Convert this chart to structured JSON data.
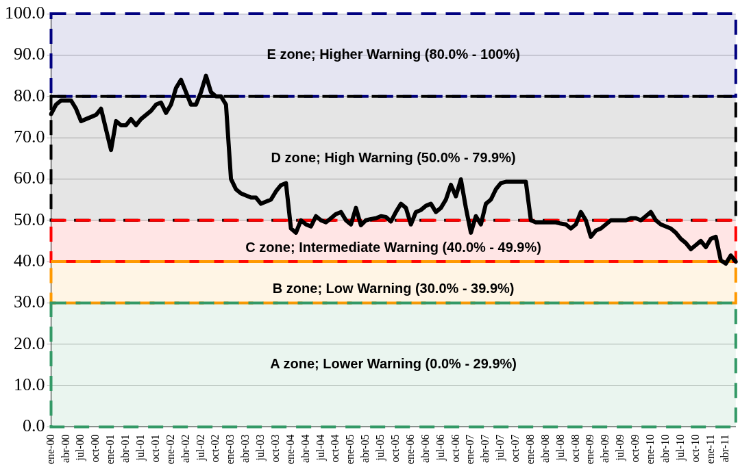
{
  "chart_data": {
    "type": "line",
    "categories": [
      "ene-00",
      null,
      null,
      "abr-00",
      null,
      null,
      "jul-00",
      null,
      null,
      "oct-00",
      null,
      null,
      "ene-01",
      null,
      null,
      "abr-01",
      null,
      null,
      "jul-01",
      null,
      null,
      "oct-01",
      null,
      null,
      "ene-02",
      null,
      null,
      "abr-02",
      null,
      null,
      "jul-02",
      null,
      null,
      "oct-02",
      null,
      null,
      "ene-03",
      null,
      null,
      "abr-03",
      null,
      null,
      "jul-03",
      null,
      null,
      "oct-03",
      null,
      null,
      "ene-04",
      null,
      null,
      "abr-04",
      null,
      null,
      "jul-04",
      null,
      null,
      "oct-04",
      null,
      null,
      "ene-05",
      null,
      null,
      "abr-05",
      null,
      null,
      "jul-05",
      null,
      null,
      "oct-05",
      null,
      null,
      "ene-06",
      null,
      null,
      "abr-06",
      null,
      null,
      "jul-06",
      null,
      null,
      "oct-06",
      null,
      null,
      "ene-07",
      null,
      null,
      "abr-07",
      null,
      null,
      "jul-07",
      null,
      null,
      "oct-07",
      null,
      null,
      "ene-08",
      null,
      null,
      "abr-08",
      null,
      null,
      "jul-08",
      null,
      null,
      "oct-08",
      null,
      null,
      "ene-09",
      null,
      null,
      "abr-09",
      null,
      null,
      "jul-09",
      null,
      null,
      "oct-09",
      null,
      null,
      "ene-10",
      null,
      null,
      "abr-10",
      null,
      null,
      "jul-10",
      null,
      null,
      "oct-10",
      null,
      null,
      "ene-11",
      null,
      null,
      "abr-11",
      null,
      null
    ],
    "series": [
      {
        "color": "#000000",
        "values": [
          75.7,
          78,
          79,
          79,
          79,
          77,
          74,
          74.5,
          75,
          75.5,
          77,
          72,
          67,
          74,
          73,
          73,
          74.5,
          73,
          74.5,
          75.5,
          76.5,
          78,
          78.5,
          76,
          78,
          82,
          84,
          81,
          78,
          78,
          81,
          85,
          81,
          80,
          80,
          78,
          60,
          57.5,
          56.5,
          56,
          55.5,
          55.5,
          54,
          54.5,
          55,
          57,
          58.5,
          59,
          48,
          47,
          50,
          49,
          48.5,
          51,
          50,
          49.5,
          50.5,
          51.5,
          52,
          50,
          49,
          53,
          48.8,
          50,
          50.3,
          50.5,
          51,
          50.8,
          49.7,
          52,
          54,
          53,
          49,
          52,
          52.5,
          53.5,
          54,
          52,
          53,
          55,
          58.6,
          55.8,
          59.9,
          53,
          47,
          51,
          49,
          54,
          55,
          57.5,
          59,
          59.3,
          59.3,
          59.3,
          59.3,
          59.3,
          50,
          49.5,
          49.5,
          49.5,
          49.5,
          49.5,
          49.2,
          49,
          48,
          49,
          52,
          50,
          46,
          47.5,
          48,
          49,
          50,
          50,
          50,
          50,
          50.5,
          50.5,
          50,
          51,
          52,
          50,
          49,
          48.5,
          48,
          47,
          45.5,
          44.5,
          43,
          44,
          45,
          43.5,
          45.5,
          46,
          40.3,
          39.5,
          41.5,
          40
        ]
      }
    ],
    "ylim": [
      0,
      100
    ],
    "yticks": [
      {
        "value": 0,
        "label": "0.0"
      },
      {
        "value": 10,
        "label": "10.0"
      },
      {
        "value": 20,
        "label": "20.0"
      },
      {
        "value": 30,
        "label": "30.0"
      },
      {
        "value": 40,
        "label": "40.0"
      },
      {
        "value": 50,
        "label": "50.0"
      },
      {
        "value": 60,
        "label": "60.0"
      },
      {
        "value": 70,
        "label": "70.0"
      },
      {
        "value": 80,
        "label": "80.0"
      },
      {
        "value": 90,
        "label": "90.0"
      },
      {
        "value": 100,
        "label": "100.0"
      }
    ],
    "grid": "y",
    "legend": false,
    "marker": "none",
    "line_style": "solid",
    "bands": [
      {
        "axis": "y",
        "from": 80,
        "to": 100,
        "label": "E zone; Higher Warning (80.0% - 100%)",
        "color": "#000080"
      },
      {
        "axis": "y",
        "from": 50,
        "to": 80,
        "label": "D zone; High Warning (50.0% - 79.9%)",
        "color": "#000000"
      },
      {
        "axis": "y",
        "from": 40,
        "to": 50,
        "label": "C zone; Intermediate Warning (40.0% - 49.9%)",
        "color": "#ff0000"
      },
      {
        "axis": "y",
        "from": 30,
        "to": 40,
        "label": "B zone; Low Warning (30.0% - 39.9%)",
        "color": "#ff9900"
      },
      {
        "axis": "y",
        "from": 0,
        "to": 30,
        "label": "A zone; Lower Warning (0.0% - 29.9%)",
        "color": "#339966"
      }
    ]
  }
}
